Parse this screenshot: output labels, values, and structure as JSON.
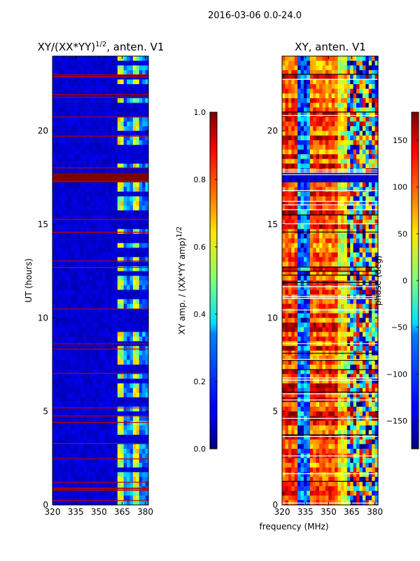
{
  "figure": {
    "suptitle": "2016-03-06 0.0-24.0",
    "xlabel": "frequency (MHz)"
  },
  "chart_data": [
    {
      "type": "heatmap",
      "title_base": "XY/(XX*YY)",
      "title_exp": "1/2",
      "title_suffix": ", anten. V1",
      "xlabel": "frequency (MHz)",
      "ylabel": "UT (hours)",
      "xlim": [
        320,
        382
      ],
      "ylim": [
        0,
        24
      ],
      "x_ticks": [
        "320",
        "335",
        "350",
        "365",
        "380"
      ],
      "y_ticks": [
        "0",
        "5",
        "10",
        "15",
        "20"
      ],
      "colormap": "jet",
      "colorbar": {
        "label_base": "XY amp. / (XX*YY amp)",
        "label_exp": "1/2",
        "range": [
          0.0,
          1.0
        ],
        "ticks": [
          "0.0",
          "0.2",
          "0.4",
          "0.6",
          "0.8",
          "1.0"
        ]
      },
      "features": {
        "background_value": 0.05,
        "saturated_band_hours": [
          17.2,
          17.8
        ],
        "bright_channel_range_mhz": [
          362,
          382
        ]
      }
    },
    {
      "type": "heatmap",
      "title": "XY, anten. V1",
      "xlabel": "frequency (MHz)",
      "ylabel": "",
      "xlim": [
        320,
        382
      ],
      "ylim": [
        0,
        24
      ],
      "x_ticks": [
        "320",
        "335",
        "350",
        "365",
        "380"
      ],
      "y_ticks": [
        "0",
        "5",
        "10",
        "15",
        "20"
      ],
      "colormap": "jet",
      "colorbar": {
        "label": "phase (deg)",
        "range": [
          -180,
          180
        ],
        "ticks": [
          "−150",
          "−100",
          "−50",
          "0",
          "50",
          "100",
          "150"
        ]
      },
      "features": {
        "gap_hours": [
          17.2,
          17.8
        ]
      }
    }
  ]
}
